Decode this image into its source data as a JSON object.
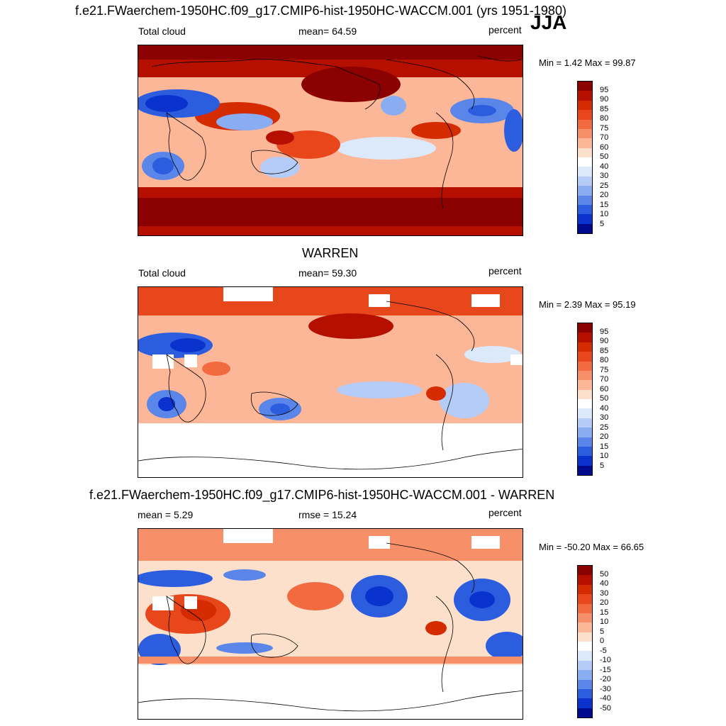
{
  "page": {
    "main_title": "f.e21.FWaerchem-1950HC.f09_g17.CMIP6-hist-1950HC-WACCM.001 (yrs 1951-1980)",
    "season": "JJA"
  },
  "panels": [
    {
      "top_left": "Total cloud",
      "top_center": "mean=  64.59",
      "top_right": "percent",
      "minmax": "Min =   1.42 Max =  99.87",
      "type": "model"
    },
    {
      "heading": "WARREN",
      "top_left": "Total cloud",
      "top_center": "mean=  59.30",
      "top_right": "percent",
      "minmax": "Min =   2.39 Max =  95.19",
      "type": "obs"
    },
    {
      "heading": "f.e21.FWaerchem-1950HC.f09_g17.CMIP6-hist-1950HC-WACCM.001 - WARREN",
      "top_left": "mean =   5.29",
      "top_center": "rmse =  15.24",
      "top_right": "percent",
      "minmax": "Min = -50.20 Max =  66.65",
      "type": "diff"
    }
  ],
  "colorbar_abs": {
    "labels": [
      "95",
      "90",
      "85",
      "80",
      "75",
      "70",
      "60",
      "50",
      "40",
      "30",
      "25",
      "20",
      "15",
      "10",
      "5"
    ],
    "colors": [
      "#8b0000",
      "#b50f00",
      "#d42b00",
      "#e8471c",
      "#f26a3f",
      "#f78f68",
      "#fbb797",
      "#fde0cc",
      "#ffffff",
      "#dce9fb",
      "#b4ccf7",
      "#8aadf1",
      "#5a86e9",
      "#2c5ddf",
      "#0a32cc",
      "#000a8f"
    ]
  },
  "colorbar_diff": {
    "labels": [
      "50",
      "40",
      "30",
      "20",
      "15",
      "10",
      "5",
      "0",
      "-5",
      "-10",
      "-15",
      "-20",
      "-30",
      "-40",
      "-50"
    ],
    "colors": [
      "#8b0000",
      "#b50f00",
      "#d42b00",
      "#e8471c",
      "#f26a3f",
      "#f78f68",
      "#fbb797",
      "#fde0cc",
      "#ffffff",
      "#dce9fb",
      "#b4ccf7",
      "#8aadf1",
      "#5a86e9",
      "#2c5ddf",
      "#0a32cc",
      "#000a8f"
    ]
  }
}
